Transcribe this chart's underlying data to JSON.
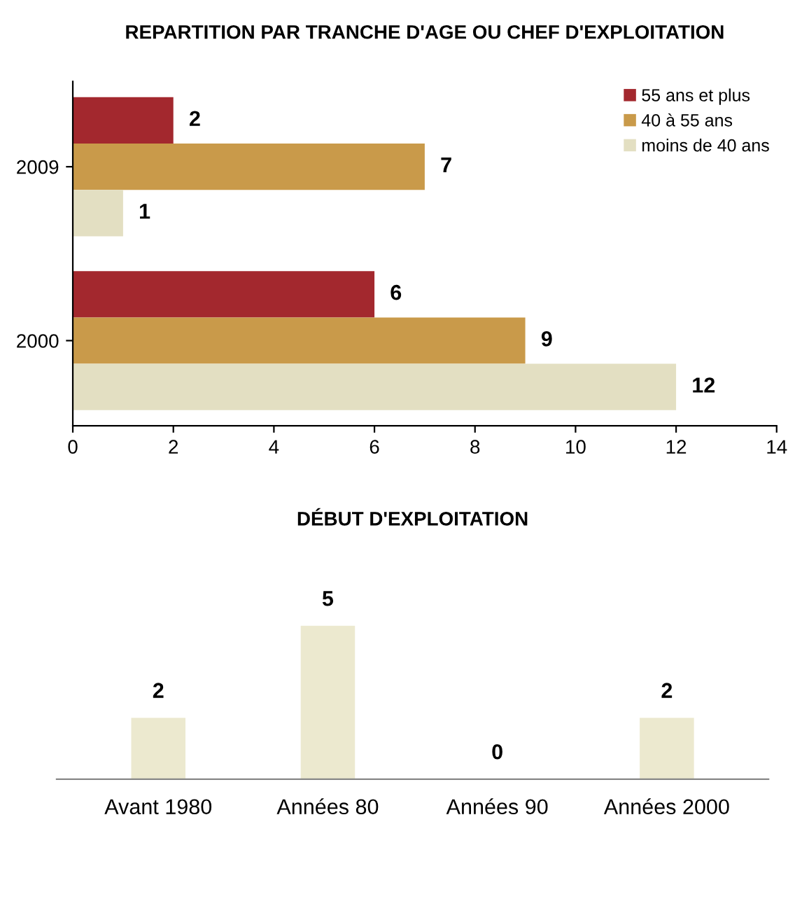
{
  "chart_data": [
    {
      "type": "bar",
      "title": "REPARTITION PAR TRANCHE D'AGE OU CHEF D'EXPLOITATION",
      "orientation": "horizontal",
      "categories": [
        "2009",
        "2000"
      ],
      "series": [
        {
          "name": "55 ans et plus",
          "color": "#a3282e",
          "values": [
            2,
            6
          ]
        },
        {
          "name": "40 à 55 ans",
          "color": "#c99a4a",
          "values": [
            7,
            9
          ]
        },
        {
          "name": "moins de 40 ans",
          "color": "#e3dfc2",
          "values": [
            1,
            12
          ]
        }
      ],
      "xlim": [
        0,
        14
      ],
      "xticks": [
        0,
        2,
        4,
        6,
        8,
        10,
        12,
        14
      ],
      "data_labels": true,
      "legend": "top right",
      "grid": false
    },
    {
      "type": "bar",
      "title": "DÉBUT D'EXPLOITATION",
      "categories": [
        "Avant 1980",
        "Années 80",
        "Années 90",
        "Années 2000"
      ],
      "values": [
        2,
        5,
        0,
        2
      ],
      "color": "#ece9cf",
      "data_labels": true,
      "tick_labels": "x",
      "grid": false
    }
  ]
}
